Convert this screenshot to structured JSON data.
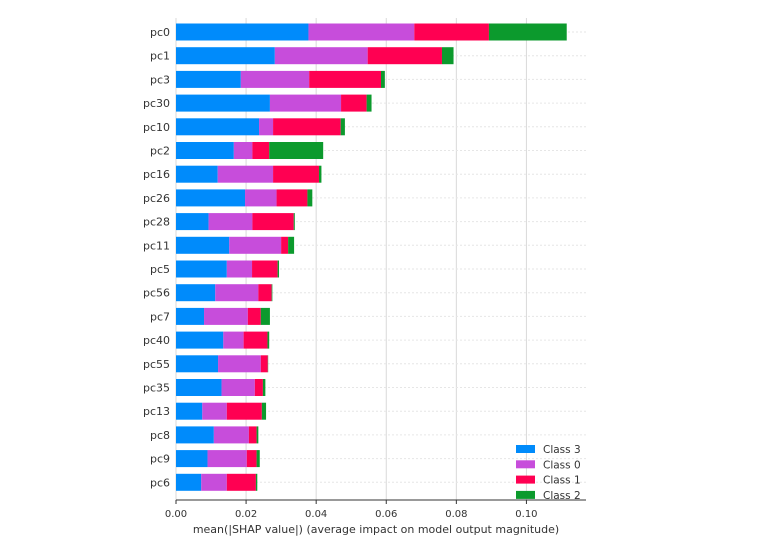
{
  "chart_data": {
    "type": "bar",
    "orientation": "horizontal",
    "stacked": true,
    "title": "",
    "xlabel": "mean(|SHAP value|) (average impact on model output magnitude)",
    "ylabel": "",
    "xlim": [
      0,
      0.117
    ],
    "xticks": [
      "0.00",
      "0.02",
      "0.04",
      "0.06",
      "0.08",
      "0.10"
    ],
    "grid": "vertical",
    "legend_position": "bottom-right",
    "categories": [
      "pc0",
      "pc1",
      "pc3",
      "pc30",
      "pc10",
      "pc2",
      "pc16",
      "pc26",
      "pc28",
      "pc11",
      "pc5",
      "pc56",
      "pc7",
      "pc40",
      "pc55",
      "pc35",
      "pc13",
      "pc8",
      "pc9",
      "pc6"
    ],
    "series": [
      {
        "name": "Class 3",
        "color": "#008bfb",
        "values": [
          0.0378,
          0.0282,
          0.0185,
          0.0268,
          0.0237,
          0.0165,
          0.0119,
          0.0197,
          0.0093,
          0.0152,
          0.0145,
          0.0112,
          0.008,
          0.0135,
          0.012,
          0.013,
          0.0075,
          0.0108,
          0.009,
          0.0072
        ]
      },
      {
        "name": "Class 0",
        "color": "#c74ddb",
        "values": [
          0.0302,
          0.0265,
          0.0195,
          0.0203,
          0.004,
          0.0053,
          0.0158,
          0.009,
          0.0125,
          0.0148,
          0.0072,
          0.0123,
          0.0125,
          0.0058,
          0.0122,
          0.0095,
          0.007,
          0.01,
          0.0112,
          0.0073
        ]
      },
      {
        "name": "Class 1",
        "color": "#ff0052",
        "values": [
          0.0213,
          0.0212,
          0.0205,
          0.0073,
          0.0193,
          0.0048,
          0.0131,
          0.0088,
          0.0118,
          0.002,
          0.0073,
          0.0038,
          0.0037,
          0.0068,
          0.002,
          0.0023,
          0.01,
          0.0022,
          0.0028,
          0.0083
        ]
      },
      {
        "name": "Class 2",
        "color": "#0c9a2d",
        "values": [
          0.0222,
          0.0033,
          0.0011,
          0.0014,
          0.0012,
          0.0154,
          0.0007,
          0.0014,
          0.0003,
          0.0017,
          0.0004,
          0.0002,
          0.0026,
          0.0005,
          0.0001,
          0.0007,
          0.0012,
          0.0005,
          0.0009,
          0.0004
        ]
      }
    ],
    "legend_order": [
      "Class 3",
      "Class 0",
      "Class 1",
      "Class 2"
    ]
  }
}
